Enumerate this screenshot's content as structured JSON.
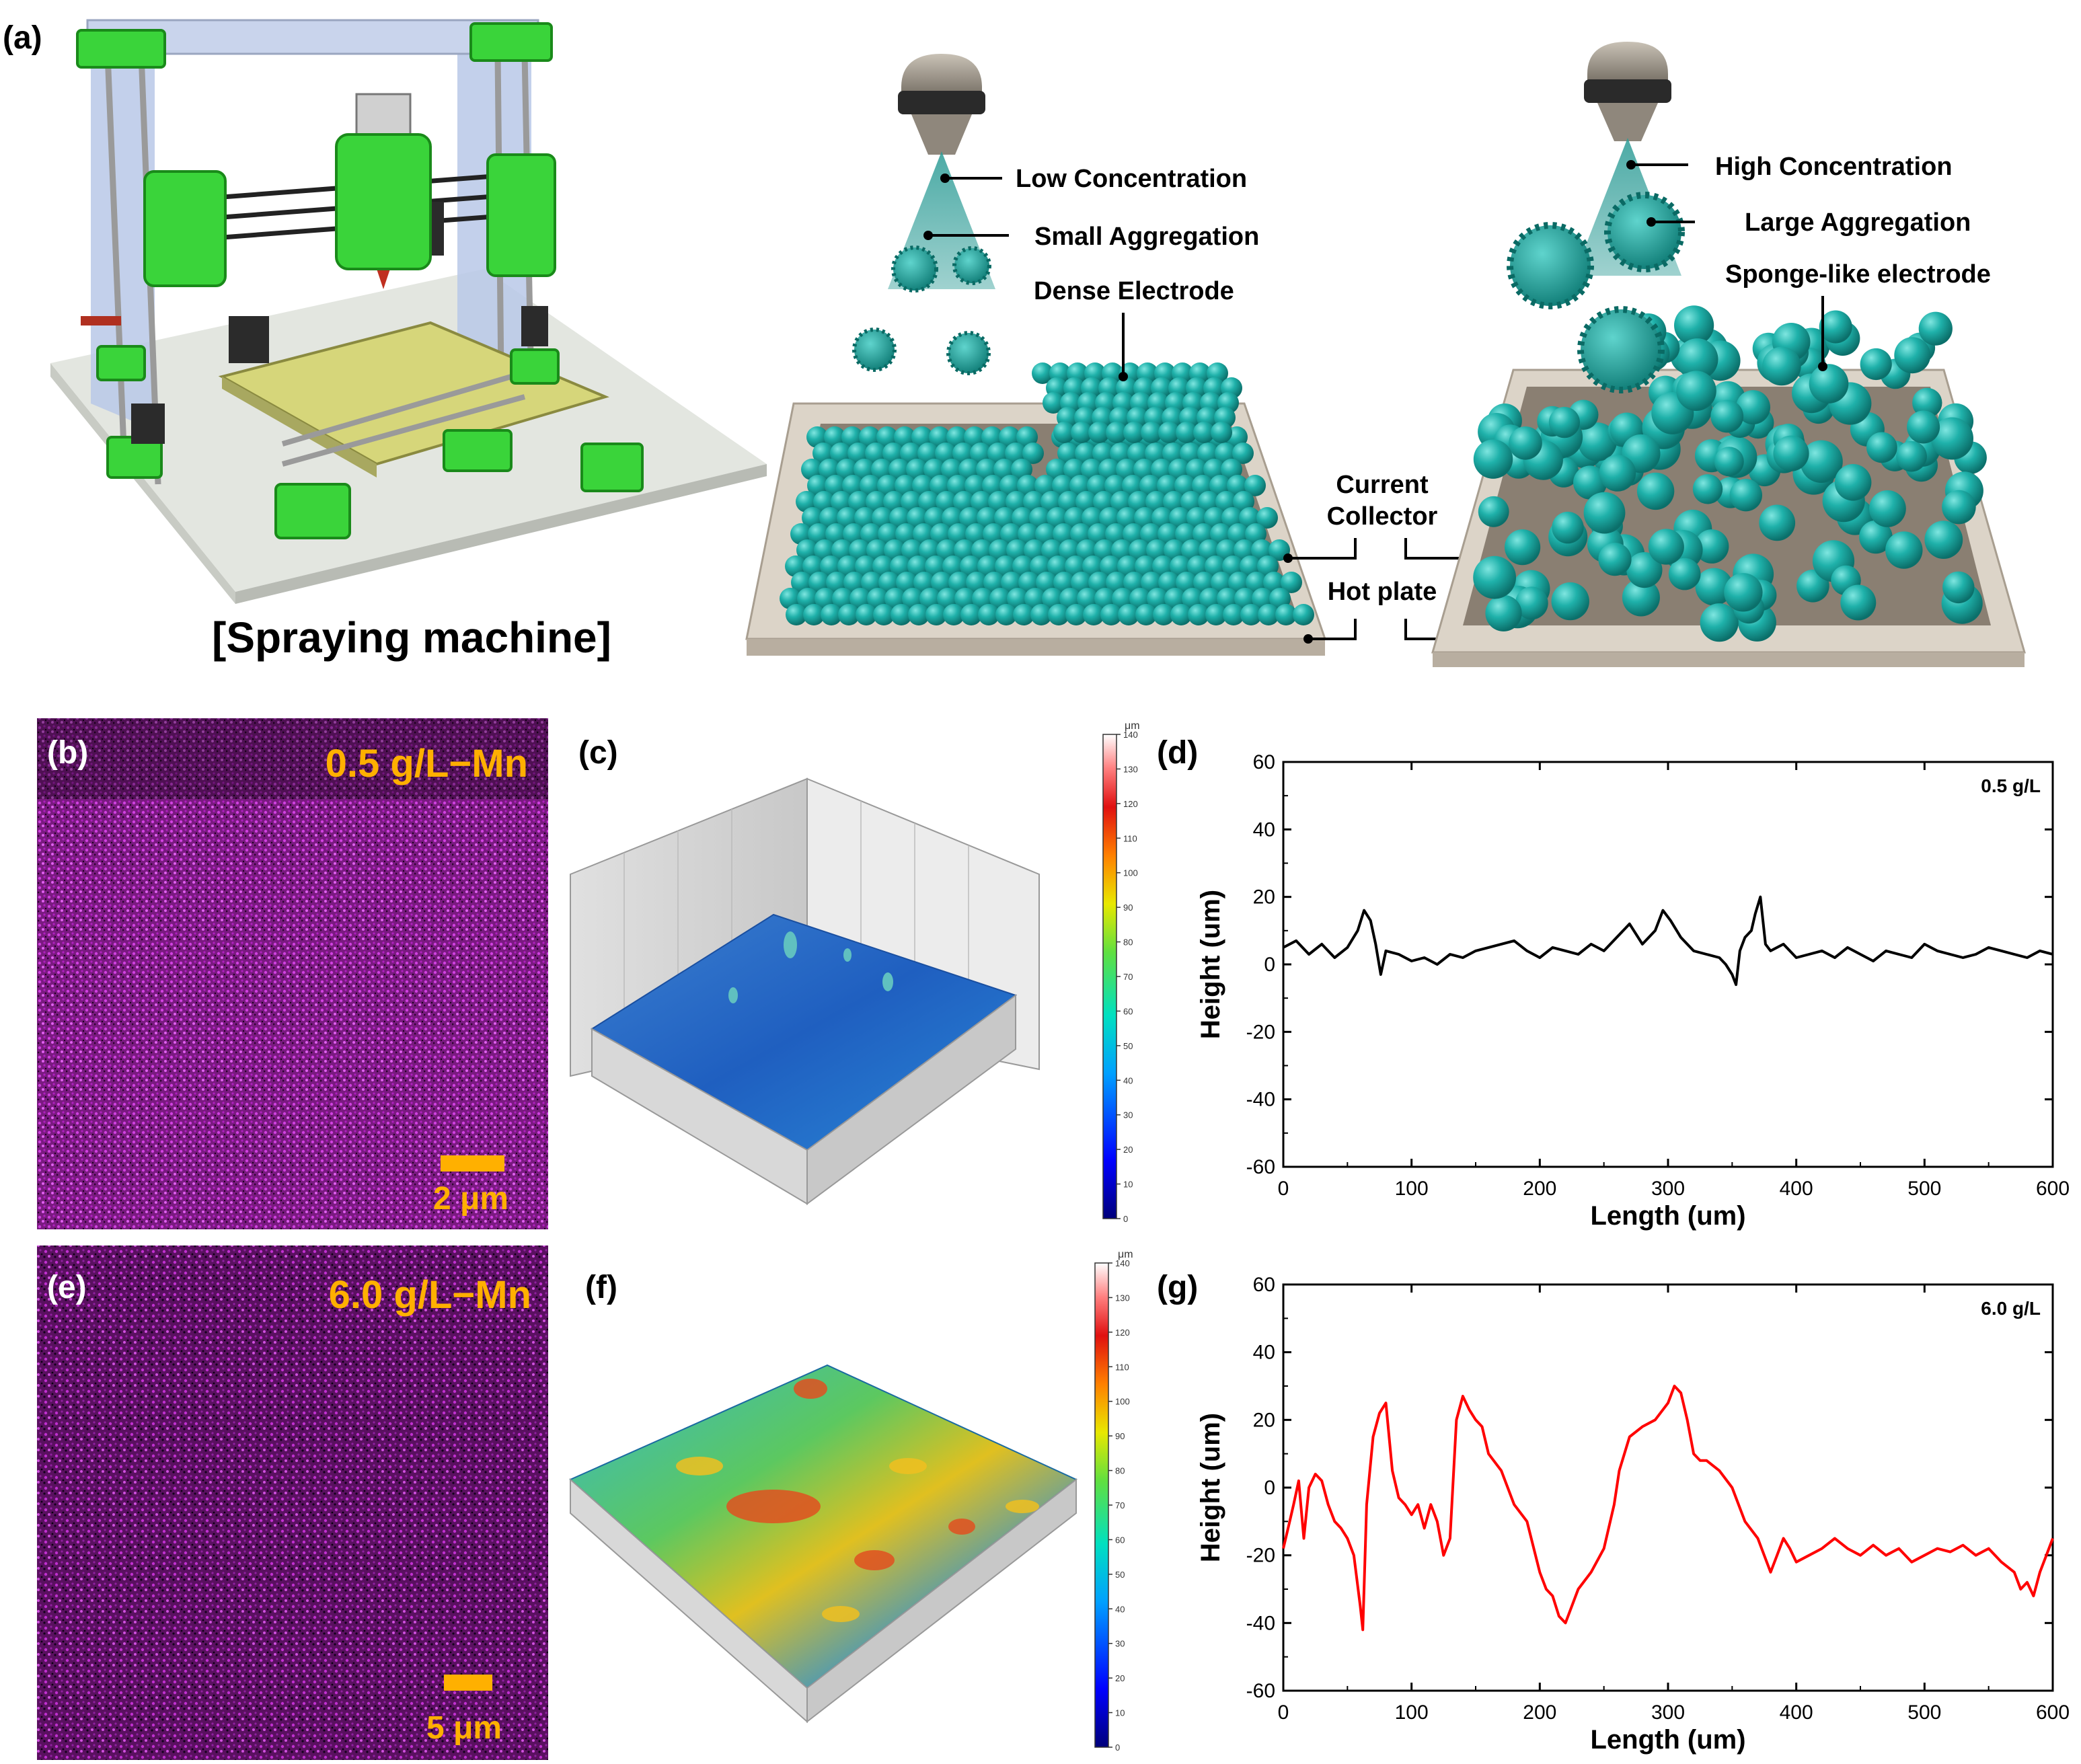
{
  "panel_a": {
    "label": "(a)",
    "machine_caption": "[Spraying machine]",
    "left_scheme": {
      "concentration": "Low Concentration",
      "aggregation": "Small Aggregation",
      "electrode": "Dense Electrode"
    },
    "right_scheme": {
      "concentration": "High Concentration",
      "aggregation": "Large Aggregation",
      "electrode": "Sponge-like electrode"
    },
    "current_collector_line1": "Current",
    "current_collector_line2": "Collector",
    "hot_plate": "Hot plate"
  },
  "panel_b": {
    "label": "(b)",
    "title": "0.5 g/L−Mn",
    "scale": "2 μm"
  },
  "panel_c": {
    "label": "(c)",
    "colorbar_unit": "μm",
    "colorbar_ticks": [
      "0",
      "10",
      "20",
      "30",
      "40",
      "50",
      "60",
      "70",
      "80",
      "90",
      "100",
      "110",
      "120",
      "130",
      "140"
    ]
  },
  "panel_e": {
    "label": "(e)",
    "title": "6.0 g/L−Mn",
    "scale": "5 μm"
  },
  "panel_f": {
    "label": "(f)",
    "colorbar_unit": "μm",
    "colorbar_ticks": [
      "0",
      "10",
      "20",
      "30",
      "40",
      "50",
      "60",
      "70",
      "80",
      "90",
      "100",
      "110",
      "120",
      "130",
      "140"
    ]
  },
  "chart_data": [
    {
      "panel": "(d)",
      "type": "line",
      "legend": "0.5 g/L",
      "xlabel": "Length (um)",
      "ylabel": "Height (um)",
      "xlim": [
        0,
        600
      ],
      "ylim": [
        -60,
        60
      ],
      "xticks": [
        0,
        100,
        200,
        300,
        400,
        500,
        600
      ],
      "yticks": [
        -60,
        -40,
        -20,
        0,
        20,
        40,
        60
      ],
      "color": "#000000",
      "x": [
        0,
        10,
        20,
        30,
        40,
        50,
        58,
        63,
        68,
        72,
        76,
        80,
        90,
        100,
        110,
        120,
        130,
        140,
        150,
        160,
        170,
        180,
        190,
        200,
        210,
        220,
        230,
        240,
        250,
        260,
        270,
        280,
        290,
        296,
        302,
        310,
        320,
        330,
        340,
        345,
        350,
        353,
        356,
        360,
        365,
        368,
        372,
        376,
        380,
        390,
        400,
        410,
        420,
        430,
        440,
        450,
        460,
        470,
        480,
        490,
        500,
        510,
        520,
        530,
        540,
        550,
        560,
        570,
        580,
        590,
        600
      ],
      "y": [
        5,
        7,
        3,
        6,
        2,
        5,
        10,
        16,
        13,
        6,
        -3,
        4,
        3,
        1,
        2,
        0,
        3,
        2,
        4,
        5,
        6,
        7,
        4,
        2,
        5,
        4,
        3,
        6,
        4,
        8,
        12,
        6,
        10,
        16,
        13,
        8,
        4,
        3,
        2,
        0,
        -3,
        -6,
        4,
        8,
        10,
        15,
        20,
        6,
        4,
        6,
        2,
        3,
        4,
        2,
        5,
        3,
        1,
        4,
        3,
        2,
        6,
        4,
        3,
        2,
        3,
        5,
        4,
        3,
        2,
        4,
        3
      ]
    },
    {
      "panel": "(g)",
      "type": "line",
      "legend": "6.0 g/L",
      "xlabel": "Length (um)",
      "ylabel": "Height (um)",
      "xlim": [
        0,
        600
      ],
      "ylim": [
        -60,
        60
      ],
      "xticks": [
        0,
        100,
        200,
        300,
        400,
        500,
        600
      ],
      "yticks": [
        -60,
        -40,
        -20,
        0,
        20,
        40,
        60
      ],
      "color": "#ff0000",
      "x": [
        0,
        5,
        8,
        12,
        16,
        20,
        25,
        30,
        35,
        40,
        45,
        50,
        55,
        60,
        62,
        65,
        70,
        75,
        80,
        85,
        90,
        95,
        100,
        105,
        110,
        115,
        120,
        125,
        130,
        135,
        140,
        145,
        150,
        155,
        160,
        170,
        180,
        190,
        200,
        205,
        210,
        215,
        220,
        225,
        230,
        240,
        250,
        258,
        262,
        270,
        280,
        290,
        300,
        305,
        310,
        315,
        320,
        325,
        330,
        340,
        350,
        360,
        370,
        375,
        380,
        385,
        390,
        395,
        400,
        410,
        420,
        430,
        440,
        450,
        460,
        470,
        480,
        490,
        500,
        510,
        520,
        530,
        540,
        550,
        560,
        570,
        575,
        580,
        585,
        590,
        595,
        600
      ],
      "y": [
        -18,
        -10,
        -5,
        2,
        -15,
        0,
        4,
        2,
        -5,
        -10,
        -12,
        -15,
        -20,
        -35,
        -42,
        -5,
        15,
        22,
        25,
        5,
        -3,
        -5,
        -8,
        -5,
        -12,
        -5,
        -10,
        -20,
        -15,
        20,
        27,
        23,
        20,
        18,
        10,
        5,
        -5,
        -10,
        -25,
        -30,
        -32,
        -38,
        -40,
        -35,
        -30,
        -25,
        -18,
        -5,
        5,
        15,
        18,
        20,
        25,
        30,
        28,
        20,
        10,
        8,
        8,
        5,
        0,
        -10,
        -15,
        -20,
        -25,
        -20,
        -15,
        -18,
        -22,
        -20,
        -18,
        -15,
        -18,
        -20,
        -17,
        -20,
        -18,
        -22,
        -20,
        -18,
        -19,
        -17,
        -20,
        -18,
        -22,
        -25,
        -30,
        -28,
        -32,
        -25,
        -20,
        -15
      ]
    }
  ]
}
